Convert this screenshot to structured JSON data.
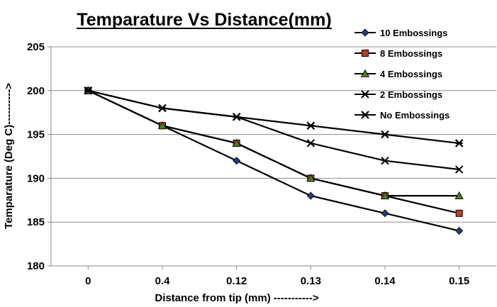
{
  "chart_data": {
    "type": "line",
    "title": "Temparature Vs Distance(mm)",
    "xlabel": "Distance from tip (mm) ----------->",
    "ylabel": "Temparature  (Deg C)---------->",
    "categories": [
      "0",
      "0.4",
      "0.12",
      "0.13",
      "0.14",
      "0.15"
    ],
    "ylim": [
      180,
      205
    ],
    "yticks": [
      180,
      185,
      190,
      195,
      200,
      205
    ],
    "grid": "horizontal",
    "legend_position": "top-right",
    "series": [
      {
        "name": "10 Embossings",
        "marker": "diamond",
        "marker_color": "#1f3f7f",
        "values": [
          200,
          196,
          192,
          188,
          186,
          184
        ]
      },
      {
        "name": "8 Embossings",
        "marker": "square",
        "marker_color": "#c0392b",
        "values": [
          200,
          196,
          194,
          190,
          188,
          186
        ]
      },
      {
        "name": "4  Embossings",
        "marker": "triangle",
        "marker_color": "#4e7a1e",
        "values": [
          200,
          196,
          194,
          190,
          188,
          188
        ]
      },
      {
        "name": "2  Embossings",
        "marker": "x",
        "marker_color": "#000000",
        "values": [
          200,
          198,
          197,
          194,
          192,
          191
        ]
      },
      {
        "name": "No  Embossings",
        "marker": "star",
        "marker_color": "#000000",
        "values": [
          200,
          198,
          197,
          196,
          195,
          194
        ]
      }
    ]
  }
}
